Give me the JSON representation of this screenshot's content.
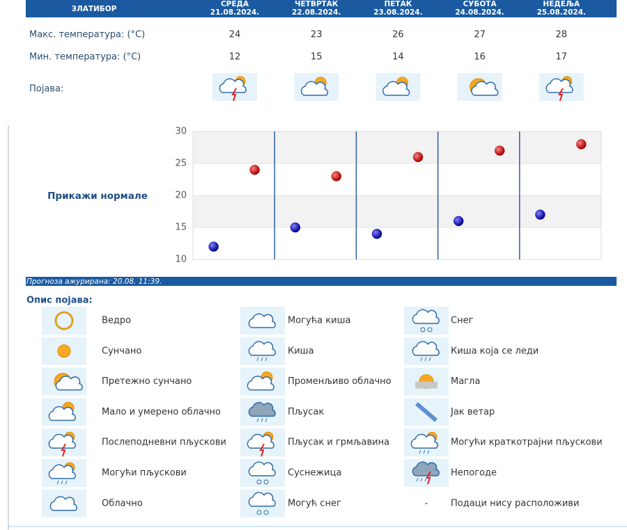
{
  "forecast": {
    "location": "ЗЛАТИБОР",
    "dates": [
      "21.08.2024.",
      "22.08.2024.",
      "23.08.2024.",
      "24.08.2024.",
      "25.08.2024."
    ],
    "max_label": "Макс. температура: (°C)",
    "min_label": "Мин. температура: (°C)",
    "phenomenon_label": "Појава:",
    "normals_link": "Прикажи нормале",
    "updated": "Прогноза ажурирана:  20.08. 11:39."
  },
  "chart_data": {
    "type": "dot",
    "categories": [
      "СРЕДА",
      "ЧЕТВРТАК",
      "ПЕТАК",
      "СУБОТА",
      "НЕДЕЉА"
    ],
    "series": [
      {
        "color": "#cc0000",
        "values": [
          24,
          23,
          26,
          27,
          28
        ]
      },
      {
        "color": "#0000cc",
        "values": [
          12,
          15,
          14,
          16,
          17
        ]
      }
    ],
    "ylim": [
      10,
      30
    ],
    "yticks": [
      10,
      15,
      20,
      25,
      30
    ],
    "grid": true
  },
  "legend": {
    "title": "Опис појава:",
    "no_data_symbol": "-",
    "items": [
      "Ведро",
      "Сунчано",
      "Претежно сунчано",
      "Мало и умерено облачно",
      "Послеподневни пљускови",
      "Могући пљускови",
      "Облачно",
      "Могућа киша",
      "Киша",
      "Променљиво облачно",
      "Пљусак",
      "Пљусак и грмљавина",
      "Суснежица",
      "Могућ снег",
      "Снег",
      "Киша која се леди",
      "Магла",
      "Јак ветар",
      "Могући краткотрајни пљускови",
      "Непогоде",
      "Подаци нису расположиви"
    ]
  }
}
